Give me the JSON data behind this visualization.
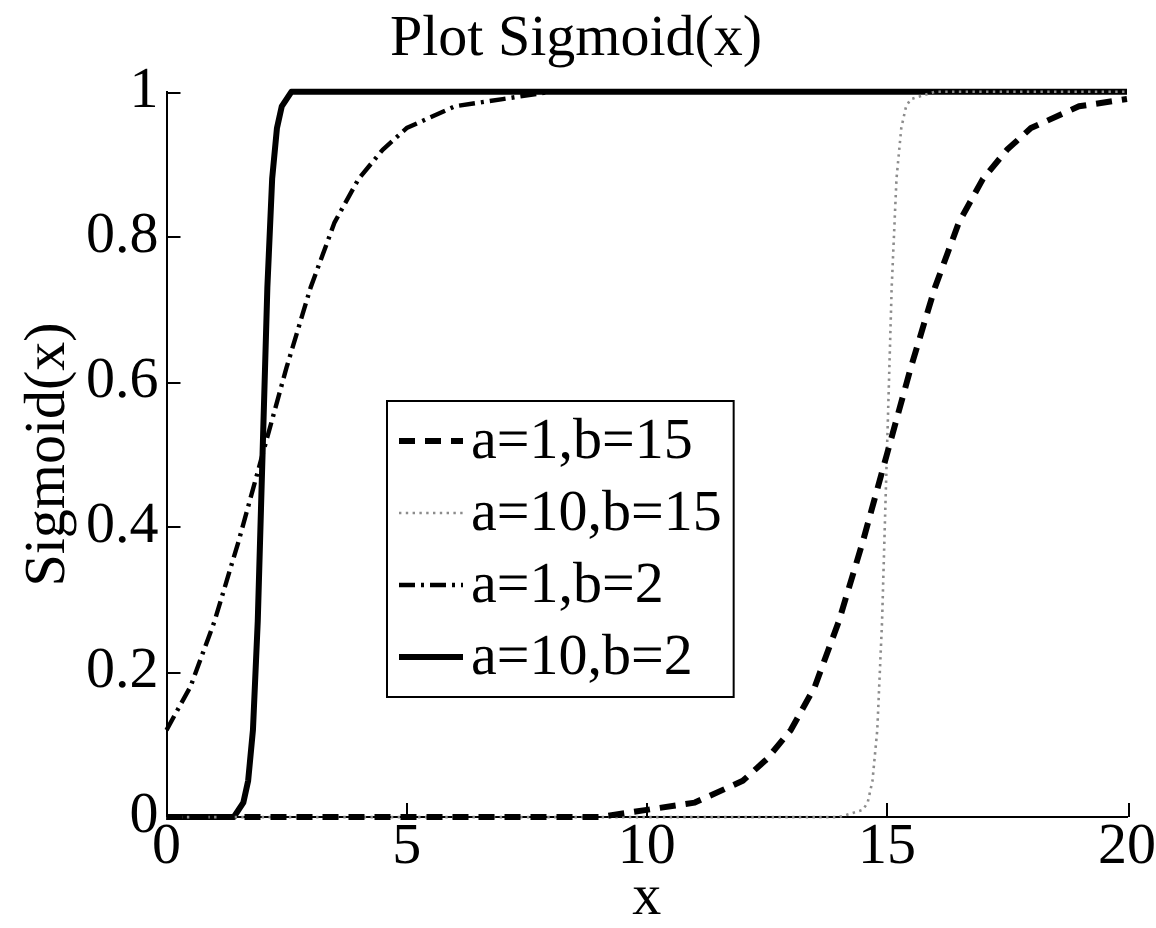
{
  "chart_data": {
    "type": "line",
    "title": "Plot Sigmoid(x)",
    "xlabel": "x",
    "ylabel": "Sigmoid(x)",
    "xlim": [
      0,
      20
    ],
    "xticks": [
      0,
      5,
      10,
      15,
      20
    ],
    "ylim": [
      0,
      1
    ],
    "yticks": [
      0,
      0.2,
      0.4,
      0.6,
      0.8,
      1
    ],
    "legend": "center",
    "series": [
      {
        "name": "a=1,b=15",
        "color": "#000000",
        "line_style": "dashed",
        "x": [
          0,
          5,
          8,
          9,
          10,
          11,
          12,
          12.5,
          13,
          13.5,
          14,
          14.5,
          15,
          15.5,
          16,
          16.5,
          17,
          17.5,
          18,
          19,
          20
        ],
        "values": [
          0,
          0,
          0,
          0,
          0.01,
          0.02,
          0.05,
          0.08,
          0.12,
          0.18,
          0.27,
          0.38,
          0.5,
          0.62,
          0.73,
          0.82,
          0.88,
          0.92,
          0.95,
          0.98,
          0.99
        ]
      },
      {
        "name": "a=10,b=15",
        "color": "#8c8c8c",
        "line_style": "dotted",
        "x": [
          0,
          14,
          14.5,
          14.6,
          14.7,
          14.8,
          14.9,
          15,
          15.1,
          15.2,
          15.3,
          15.4,
          15.5,
          16,
          20
        ],
        "values": [
          0,
          0,
          0.01,
          0.02,
          0.05,
          0.12,
          0.27,
          0.5,
          0.73,
          0.88,
          0.95,
          0.98,
          0.99,
          1,
          1
        ]
      },
      {
        "name": "a=1,b=2",
        "color": "#000000",
        "line_style": "dashdot",
        "x": [
          0,
          0.5,
          1,
          1.5,
          2,
          2.5,
          3,
          3.5,
          4,
          4.5,
          5,
          6,
          7,
          8,
          10,
          20
        ],
        "values": [
          0.12,
          0.18,
          0.27,
          0.38,
          0.5,
          0.62,
          0.73,
          0.82,
          0.88,
          0.92,
          0.95,
          0.98,
          0.99,
          1,
          1,
          1
        ]
      },
      {
        "name": "a=10,b=2",
        "color": "#000000",
        "line_style": "solid",
        "x": [
          0,
          1,
          1.4,
          1.5,
          1.6,
          1.7,
          1.8,
          1.9,
          2,
          2.1,
          2.2,
          2.3,
          2.4,
          2.5,
          2.6,
          3,
          20
        ],
        "values": [
          0,
          0,
          0,
          0.01,
          0.02,
          0.05,
          0.12,
          0.27,
          0.5,
          0.73,
          0.88,
          0.95,
          0.98,
          0.99,
          1,
          1,
          1
        ]
      }
    ]
  }
}
